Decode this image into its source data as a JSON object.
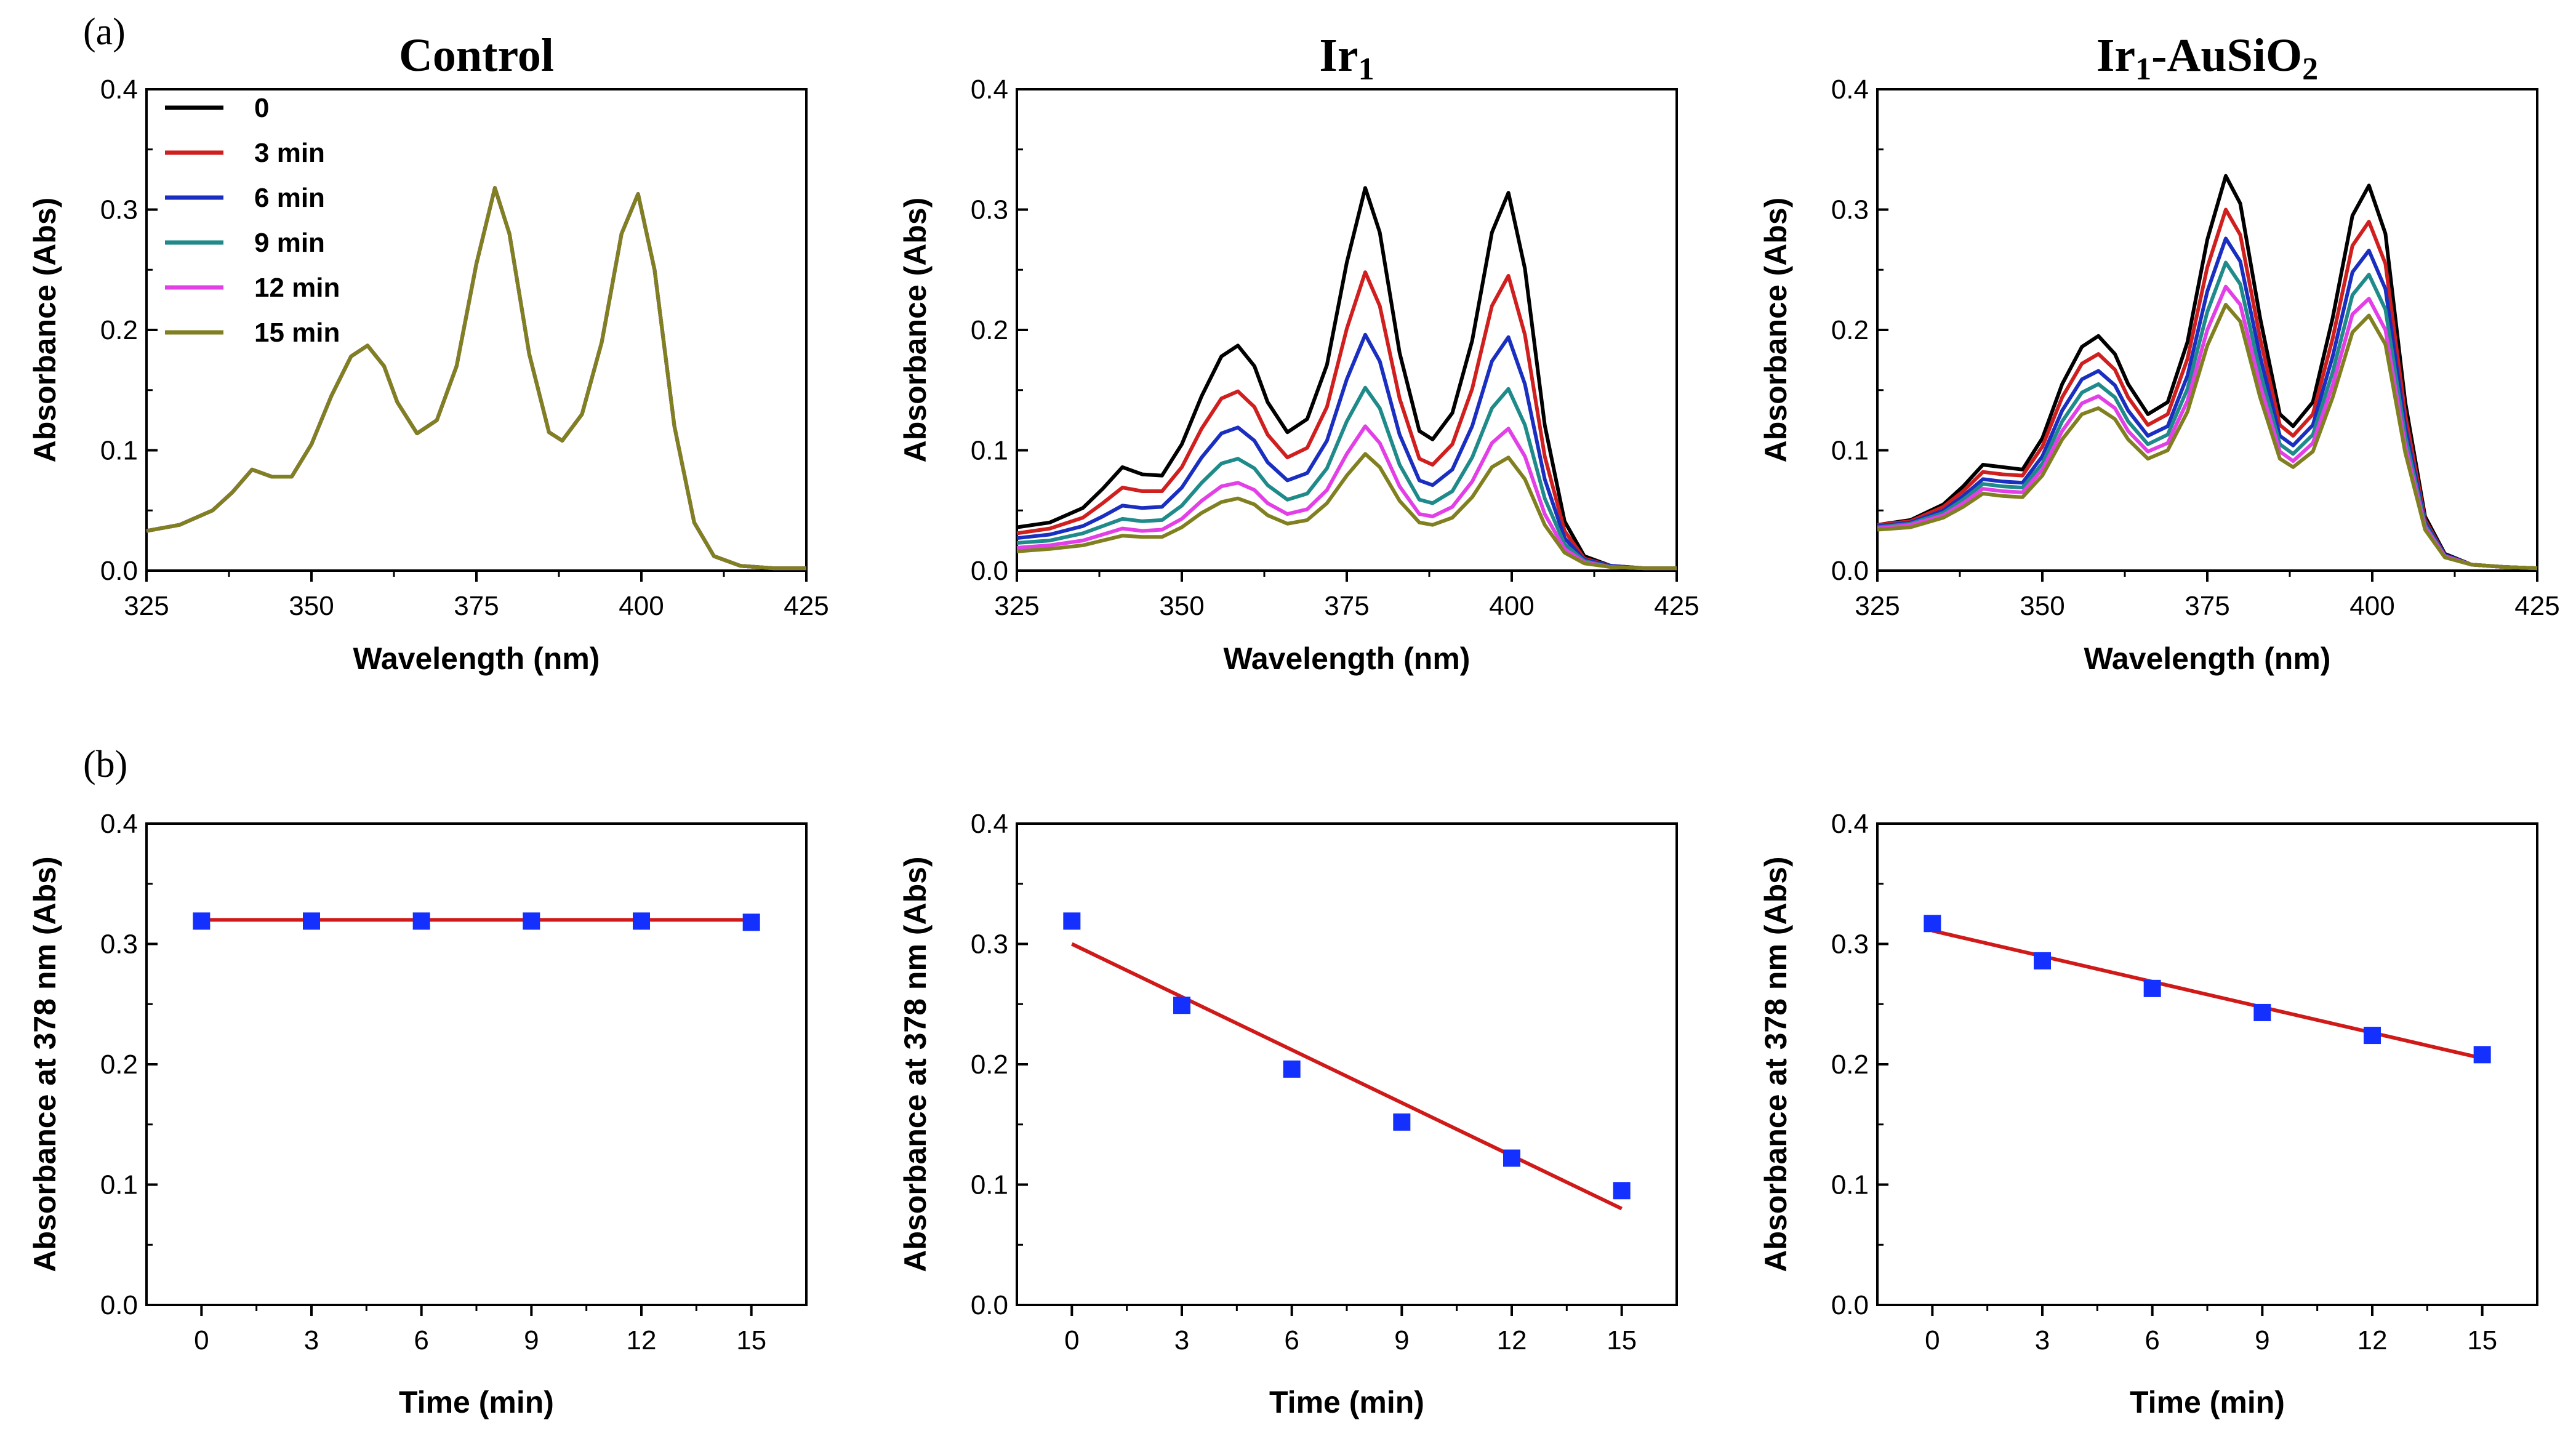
{
  "panels": {
    "a": "(a)",
    "b": "(b)"
  },
  "colors": {
    "0": "#000000",
    "3 min": "#d01f1f",
    "6 min": "#1a2fc0",
    "9 min": "#1f8a8a",
    "12 min": "#e23fe6",
    "15 min": "#808020",
    "marker": "#1430ff",
    "fit": "#d01a1a"
  },
  "chart_data": [
    {
      "type": "line",
      "title": "Control",
      "xlabel": "Wavelength (nm)",
      "ylabel": "Absorbance (Abs)",
      "xlim": [
        325,
        425
      ],
      "ylim": [
        0.0,
        0.4
      ],
      "xticks": [
        325,
        350,
        375,
        400,
        425
      ],
      "yticks": [
        "0.0",
        "0.1",
        "0.2",
        "0.3",
        "0.4"
      ],
      "legend": [
        "0",
        "3 min",
        "6 min",
        "9 min",
        "12 min",
        "15 min"
      ],
      "legend_position": "top-left",
      "x": [
        325,
        330,
        335,
        338,
        341,
        344,
        347,
        350,
        353,
        356,
        358.5,
        361,
        363,
        366,
        369,
        372,
        375,
        377.8,
        380,
        383,
        386,
        388,
        391,
        394,
        397,
        399.5,
        402,
        405,
        408,
        411,
        415,
        420,
        425
      ],
      "series": [
        {
          "name": "0",
          "values": [
            0.033,
            0.038,
            0.05,
            0.065,
            0.084,
            0.078,
            0.078,
            0.105,
            0.145,
            0.178,
            0.187,
            0.17,
            0.14,
            0.114,
            0.125,
            0.17,
            0.255,
            0.318,
            0.28,
            0.18,
            0.115,
            0.108,
            0.13,
            0.19,
            0.28,
            0.313,
            0.25,
            0.12,
            0.04,
            0.012,
            0.004,
            0.002,
            0.002
          ]
        },
        {
          "name": "3 min",
          "values": [
            0.033,
            0.038,
            0.05,
            0.065,
            0.084,
            0.078,
            0.078,
            0.105,
            0.145,
            0.178,
            0.187,
            0.17,
            0.14,
            0.114,
            0.125,
            0.17,
            0.255,
            0.318,
            0.28,
            0.18,
            0.115,
            0.108,
            0.13,
            0.19,
            0.28,
            0.313,
            0.25,
            0.12,
            0.04,
            0.012,
            0.004,
            0.002,
            0.002
          ]
        },
        {
          "name": "6 min",
          "values": [
            0.033,
            0.038,
            0.05,
            0.065,
            0.084,
            0.078,
            0.078,
            0.105,
            0.145,
            0.178,
            0.187,
            0.17,
            0.14,
            0.114,
            0.125,
            0.17,
            0.255,
            0.318,
            0.28,
            0.18,
            0.115,
            0.108,
            0.13,
            0.19,
            0.28,
            0.313,
            0.25,
            0.12,
            0.04,
            0.012,
            0.004,
            0.002,
            0.002
          ]
        },
        {
          "name": "9 min",
          "values": [
            0.033,
            0.038,
            0.05,
            0.065,
            0.084,
            0.078,
            0.078,
            0.105,
            0.145,
            0.178,
            0.187,
            0.17,
            0.14,
            0.114,
            0.125,
            0.17,
            0.255,
            0.318,
            0.28,
            0.18,
            0.115,
            0.108,
            0.13,
            0.19,
            0.28,
            0.313,
            0.25,
            0.12,
            0.04,
            0.012,
            0.004,
            0.002,
            0.002
          ]
        },
        {
          "name": "12 min",
          "values": [
            0.033,
            0.038,
            0.05,
            0.065,
            0.084,
            0.078,
            0.078,
            0.105,
            0.145,
            0.178,
            0.187,
            0.17,
            0.14,
            0.114,
            0.125,
            0.17,
            0.255,
            0.318,
            0.28,
            0.18,
            0.115,
            0.108,
            0.13,
            0.19,
            0.28,
            0.313,
            0.25,
            0.12,
            0.04,
            0.012,
            0.004,
            0.002,
            0.002
          ]
        },
        {
          "name": "15 min",
          "values": [
            0.033,
            0.038,
            0.05,
            0.065,
            0.084,
            0.078,
            0.078,
            0.105,
            0.145,
            0.178,
            0.187,
            0.17,
            0.14,
            0.114,
            0.125,
            0.17,
            0.255,
            0.318,
            0.28,
            0.18,
            0.115,
            0.108,
            0.13,
            0.19,
            0.28,
            0.313,
            0.25,
            0.12,
            0.04,
            0.012,
            0.004,
            0.002,
            0.002
          ]
        }
      ]
    },
    {
      "type": "line",
      "title": "Ir1",
      "xlabel": "Wavelength (nm)",
      "ylabel": "Absorbance (Abs)",
      "xlim": [
        325,
        425
      ],
      "ylim": [
        0.0,
        0.4
      ],
      "xticks": [
        325,
        350,
        375,
        400,
        425
      ],
      "yticks": [
        "0.0",
        "0.1",
        "0.2",
        "0.3",
        "0.4"
      ],
      "x": [
        325,
        330,
        335,
        338,
        341,
        344,
        347,
        350,
        353,
        356,
        358.5,
        361,
        363,
        366,
        369,
        372,
        375,
        377.8,
        380,
        383,
        386,
        388,
        391,
        394,
        397,
        399.5,
        402,
        405,
        408,
        411,
        415,
        420,
        425
      ],
      "series": [
        {
          "name": "0",
          "values": [
            0.036,
            0.04,
            0.052,
            0.068,
            0.086,
            0.08,
            0.079,
            0.105,
            0.145,
            0.178,
            0.187,
            0.17,
            0.14,
            0.115,
            0.126,
            0.171,
            0.256,
            0.318,
            0.281,
            0.181,
            0.116,
            0.109,
            0.131,
            0.191,
            0.281,
            0.314,
            0.251,
            0.121,
            0.041,
            0.012,
            0.004,
            0.002,
            0.002
          ]
        },
        {
          "name": "3 min",
          "values": [
            0.031,
            0.035,
            0.044,
            0.056,
            0.069,
            0.066,
            0.066,
            0.086,
            0.118,
            0.143,
            0.149,
            0.136,
            0.113,
            0.094,
            0.102,
            0.136,
            0.201,
            0.248,
            0.22,
            0.143,
            0.093,
            0.088,
            0.105,
            0.151,
            0.22,
            0.245,
            0.196,
            0.095,
            0.033,
            0.01,
            0.004,
            0.002,
            0.002
          ]
        },
        {
          "name": "6 min",
          "values": [
            0.027,
            0.03,
            0.037,
            0.045,
            0.054,
            0.052,
            0.053,
            0.069,
            0.094,
            0.114,
            0.119,
            0.108,
            0.09,
            0.075,
            0.081,
            0.108,
            0.159,
            0.196,
            0.174,
            0.113,
            0.075,
            0.071,
            0.084,
            0.12,
            0.174,
            0.194,
            0.155,
            0.076,
            0.027,
            0.009,
            0.004,
            0.002,
            0.002
          ]
        },
        {
          "name": "9 min",
          "values": [
            0.023,
            0.025,
            0.031,
            0.037,
            0.043,
            0.041,
            0.042,
            0.054,
            0.073,
            0.089,
            0.093,
            0.085,
            0.071,
            0.059,
            0.064,
            0.085,
            0.124,
            0.152,
            0.135,
            0.088,
            0.059,
            0.056,
            0.066,
            0.094,
            0.135,
            0.151,
            0.121,
            0.06,
            0.022,
            0.008,
            0.003,
            0.002,
            0.002
          ]
        },
        {
          "name": "12 min",
          "values": [
            0.019,
            0.021,
            0.025,
            0.03,
            0.035,
            0.033,
            0.034,
            0.043,
            0.058,
            0.07,
            0.073,
            0.067,
            0.056,
            0.047,
            0.051,
            0.067,
            0.097,
            0.12,
            0.106,
            0.07,
            0.047,
            0.045,
            0.053,
            0.074,
            0.106,
            0.118,
            0.095,
            0.047,
            0.018,
            0.007,
            0.003,
            0.002,
            0.002
          ]
        },
        {
          "name": "15 min",
          "values": [
            0.016,
            0.018,
            0.021,
            0.025,
            0.029,
            0.028,
            0.028,
            0.036,
            0.048,
            0.057,
            0.06,
            0.055,
            0.046,
            0.039,
            0.042,
            0.056,
            0.079,
            0.097,
            0.086,
            0.058,
            0.04,
            0.038,
            0.044,
            0.061,
            0.086,
            0.094,
            0.076,
            0.038,
            0.015,
            0.006,
            0.003,
            0.002,
            0.002
          ]
        }
      ]
    },
    {
      "type": "line",
      "title": "Ir1-AuSiO2",
      "xlabel": "Wavelength (nm)",
      "ylabel": "Absorbance (Abs)",
      "xlim": [
        325,
        425
      ],
      "ylim": [
        0.0,
        0.4
      ],
      "xticks": [
        325,
        350,
        375,
        400,
        425
      ],
      "yticks": [
        "0.0",
        "0.1",
        "0.2",
        "0.3",
        "0.4"
      ],
      "x": [
        325,
        330,
        335,
        338,
        341,
        344,
        347,
        350,
        353,
        356,
        358.5,
        361,
        363,
        366,
        369,
        372,
        375,
        377.8,
        380,
        383,
        386,
        388,
        391,
        394,
        397,
        399.5,
        402,
        405,
        408,
        411,
        415,
        420,
        425
      ],
      "series": [
        {
          "name": "0",
          "values": [
            0.038,
            0.042,
            0.055,
            0.07,
            0.088,
            0.086,
            0.084,
            0.11,
            0.155,
            0.186,
            0.195,
            0.18,
            0.155,
            0.13,
            0.14,
            0.19,
            0.275,
            0.328,
            0.305,
            0.21,
            0.13,
            0.12,
            0.14,
            0.21,
            0.295,
            0.32,
            0.28,
            0.14,
            0.045,
            0.014,
            0.005,
            0.003,
            0.002
          ]
        },
        {
          "name": "3 min",
          "values": [
            0.038,
            0.041,
            0.053,
            0.066,
            0.082,
            0.08,
            0.079,
            0.103,
            0.144,
            0.172,
            0.18,
            0.167,
            0.144,
            0.121,
            0.13,
            0.176,
            0.252,
            0.3,
            0.279,
            0.193,
            0.121,
            0.112,
            0.13,
            0.193,
            0.27,
            0.29,
            0.255,
            0.13,
            0.042,
            0.013,
            0.005,
            0.003,
            0.002
          ]
        },
        {
          "name": "6 min",
          "values": [
            0.037,
            0.04,
            0.05,
            0.062,
            0.076,
            0.074,
            0.073,
            0.095,
            0.133,
            0.159,
            0.166,
            0.154,
            0.133,
            0.112,
            0.12,
            0.162,
            0.232,
            0.276,
            0.257,
            0.178,
            0.112,
            0.104,
            0.121,
            0.178,
            0.248,
            0.266,
            0.234,
            0.12,
            0.04,
            0.013,
            0.005,
            0.003,
            0.002
          ]
        },
        {
          "name": "9 min",
          "values": [
            0.036,
            0.039,
            0.048,
            0.059,
            0.072,
            0.07,
            0.069,
            0.089,
            0.124,
            0.148,
            0.155,
            0.144,
            0.124,
            0.105,
            0.113,
            0.151,
            0.215,
            0.256,
            0.238,
            0.165,
            0.105,
            0.097,
            0.113,
            0.165,
            0.229,
            0.246,
            0.217,
            0.112,
            0.038,
            0.012,
            0.005,
            0.003,
            0.002
          ]
        },
        {
          "name": "12 min",
          "values": [
            0.035,
            0.038,
            0.046,
            0.056,
            0.068,
            0.066,
            0.065,
            0.084,
            0.116,
            0.139,
            0.145,
            0.135,
            0.116,
            0.099,
            0.106,
            0.141,
            0.2,
            0.236,
            0.221,
            0.154,
            0.099,
            0.091,
            0.106,
            0.154,
            0.213,
            0.226,
            0.2,
            0.104,
            0.036,
            0.012,
            0.005,
            0.003,
            0.002
          ]
        },
        {
          "name": "15 min",
          "values": [
            0.034,
            0.036,
            0.044,
            0.053,
            0.064,
            0.062,
            0.061,
            0.079,
            0.109,
            0.13,
            0.135,
            0.126,
            0.109,
            0.093,
            0.1,
            0.132,
            0.187,
            0.221,
            0.207,
            0.144,
            0.093,
            0.086,
            0.099,
            0.144,
            0.198,
            0.212,
            0.188,
            0.098,
            0.034,
            0.011,
            0.005,
            0.003,
            0.002
          ]
        }
      ]
    },
    {
      "type": "scatter",
      "title": "",
      "xlabel": "Time (min)",
      "ylabel": "Absorbance at 378 nm (Abs)",
      "xlim": [
        -1.5,
        16.5
      ],
      "ylim": [
        0.0,
        0.4
      ],
      "xticks": [
        0,
        3,
        6,
        9,
        12,
        15
      ],
      "yticks": [
        "0.0",
        "0.1",
        "0.2",
        "0.3",
        "0.4"
      ],
      "x": [
        0,
        3,
        6,
        9,
        12,
        15
      ],
      "values": [
        0.319,
        0.319,
        0.319,
        0.319,
        0.319,
        0.318
      ],
      "fit": {
        "x": [
          0,
          15
        ],
        "y": [
          0.32,
          0.32
        ]
      }
    },
    {
      "type": "scatter",
      "title": "",
      "xlabel": "Time (min)",
      "ylabel": "Absorbance at 378 nm (Abs)",
      "xlim": [
        -1.5,
        16.5
      ],
      "ylim": [
        0.0,
        0.4
      ],
      "xticks": [
        0,
        3,
        6,
        9,
        12,
        15
      ],
      "yticks": [
        "0.0",
        "0.1",
        "0.2",
        "0.3",
        "0.4"
      ],
      "x": [
        0,
        3,
        6,
        9,
        12,
        15
      ],
      "values": [
        0.319,
        0.249,
        0.196,
        0.152,
        0.122,
        0.095
      ],
      "fit": {
        "x": [
          0,
          15
        ],
        "y": [
          0.3,
          0.08
        ]
      }
    },
    {
      "type": "scatter",
      "title": "",
      "xlabel": "Time (min)",
      "ylabel": "Absorbance at 378 nm (Abs)",
      "xlim": [
        -1.5,
        16.5
      ],
      "ylim": [
        0.0,
        0.4
      ],
      "xticks": [
        0,
        3,
        6,
        9,
        12,
        15
      ],
      "yticks": [
        "0.0",
        "0.1",
        "0.2",
        "0.3",
        "0.4"
      ],
      "x": [
        0,
        3,
        6,
        9,
        12,
        15
      ],
      "values": [
        0.317,
        0.286,
        0.263,
        0.243,
        0.224,
        0.208
      ],
      "fit": {
        "x": [
          0,
          15
        ],
        "y": [
          0.311,
          0.205
        ]
      }
    }
  ]
}
